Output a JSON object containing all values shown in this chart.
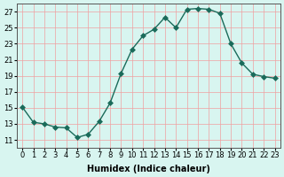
{
  "x": [
    0,
    1,
    2,
    3,
    4,
    5,
    6,
    7,
    8,
    9,
    10,
    11,
    12,
    13,
    14,
    15,
    16,
    17,
    18,
    19,
    20,
    21,
    22,
    23
  ],
  "y": [
    15.1,
    13.2,
    13.0,
    12.6,
    12.5,
    11.3,
    11.7,
    13.3,
    15.6,
    19.3,
    22.3,
    24.0,
    24.8,
    26.3,
    25.0,
    27.3,
    27.4,
    27.3,
    26.8,
    23.0,
    20.6,
    19.2,
    18.9,
    18.7
  ],
  "line_color": "#1a6b5a",
  "marker": "D",
  "marker_size": 3,
  "bg_color": "#d8f5f0",
  "grid_color": "#f0a0a0",
  "xlabel": "Humidex (Indice chaleur)",
  "ylabel": "",
  "xlim": [
    -0.5,
    23.5
  ],
  "ylim": [
    10,
    28
  ],
  "yticks": [
    11,
    13,
    15,
    17,
    19,
    21,
    23,
    25,
    27
  ],
  "xticks": [
    0,
    1,
    2,
    3,
    4,
    5,
    6,
    7,
    8,
    9,
    10,
    11,
    12,
    13,
    14,
    15,
    16,
    17,
    18,
    19,
    20,
    21,
    22,
    23
  ],
  "font_size_label": 7,
  "font_size_tick": 6
}
